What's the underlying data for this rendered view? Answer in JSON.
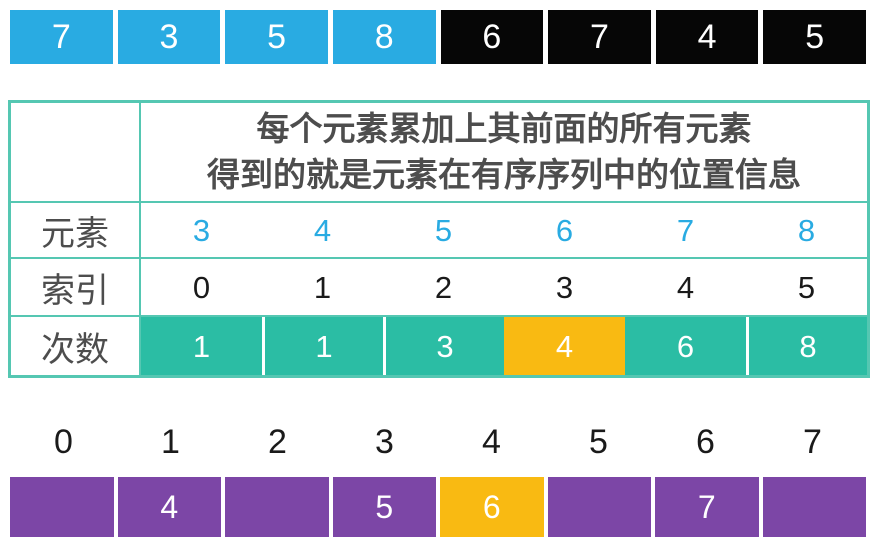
{
  "colors": {
    "cyan": "#29ABE2",
    "black_cell": "#060606",
    "teal": "#2BBDA4",
    "teal_border": "#55C7B2",
    "orange": "#F9BA12",
    "purple": "#7C46A6",
    "label_text": "#4D4D4D",
    "digit_dark": "#1A1A1A",
    "white": "#FFFFFF"
  },
  "top_array": {
    "cells": [
      {
        "value": "7",
        "color": "cyan"
      },
      {
        "value": "3",
        "color": "cyan"
      },
      {
        "value": "5",
        "color": "cyan"
      },
      {
        "value": "8",
        "color": "cyan"
      },
      {
        "value": "6",
        "color": "black_cell"
      },
      {
        "value": "7",
        "color": "black_cell"
      },
      {
        "value": "4",
        "color": "black_cell"
      },
      {
        "value": "5",
        "color": "black_cell"
      }
    ]
  },
  "table": {
    "header_line1": "每个元素累加上其前面的所有元素",
    "header_line2": "得到的就是元素在有序序列中的位置信息",
    "rows": [
      {
        "label": "元素",
        "values": [
          "3",
          "4",
          "5",
          "6",
          "7",
          "8"
        ]
      },
      {
        "label": "索引",
        "values": [
          "0",
          "1",
          "2",
          "3",
          "4",
          "5"
        ]
      },
      {
        "label": "次数",
        "values": [
          "1",
          "1",
          "3",
          "4",
          "6",
          "8"
        ],
        "highlight_index": 3
      }
    ]
  },
  "bottom": {
    "indices": [
      "0",
      "1",
      "2",
      "3",
      "4",
      "5",
      "6",
      "7"
    ],
    "cells": [
      {
        "value": "",
        "highlight": false
      },
      {
        "value": "4",
        "highlight": false
      },
      {
        "value": "",
        "highlight": false
      },
      {
        "value": "5",
        "highlight": false
      },
      {
        "value": "6",
        "highlight": true
      },
      {
        "value": "",
        "highlight": false
      },
      {
        "value": "7",
        "highlight": false
      },
      {
        "value": "",
        "highlight": false
      }
    ]
  }
}
